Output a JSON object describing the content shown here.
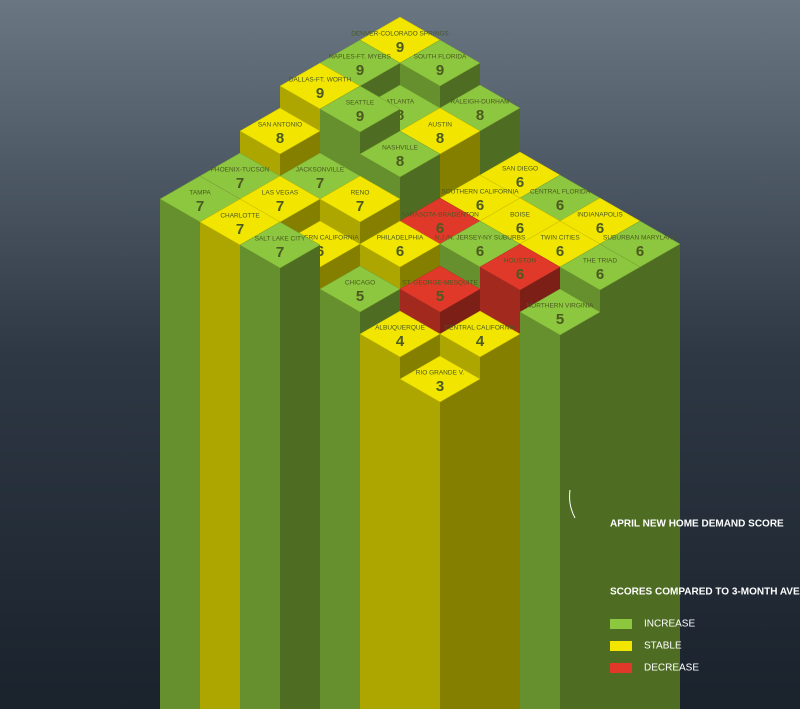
{
  "markets": [
    {
      "name": "DENVER-COLORADO SPRINGS",
      "score": 9,
      "trend": "STABLE"
    },
    {
      "name": "SOUTH FLORIDA",
      "score": 9,
      "trend": "INCREASE"
    },
    {
      "name": "RALEIGH-DURHAM",
      "score": 8,
      "trend": "INCREASE"
    },
    {
      "name": "SAN DIEGO",
      "score": 6,
      "trend": "STABLE"
    },
    {
      "name": "CENTRAL FLORIDA",
      "score": 6,
      "trend": "INCREASE"
    },
    {
      "name": "INDIANAPOLIS",
      "score": 6,
      "trend": "STABLE"
    },
    {
      "name": "SUBURBAN MARYLAND",
      "score": 6,
      "trend": "INCREASE"
    },
    {
      "name": "NAPLES-FT. MYERS",
      "score": 9,
      "trend": "INCREASE"
    },
    {
      "name": "ATLANTA",
      "score": 8,
      "trend": "INCREASE"
    },
    {
      "name": "AUSTIN",
      "score": 8,
      "trend": "STABLE"
    },
    {
      "name": "SOUTHERN CALIFORNIA",
      "score": 6,
      "trend": "STABLE"
    },
    {
      "name": "BOISE",
      "score": 6,
      "trend": "STABLE"
    },
    {
      "name": "TWIN CITIES",
      "score": 6,
      "trend": "STABLE"
    },
    {
      "name": "THE TRIAD",
      "score": 6,
      "trend": "INCREASE"
    },
    {
      "name": "DALLAS-FT. WORTH",
      "score": 9,
      "trend": "STABLE"
    },
    {
      "name": "SEATTLE",
      "score": 9,
      "trend": "INCREASE"
    },
    {
      "name": "NASHVILLE",
      "score": 8,
      "trend": "INCREASE"
    },
    {
      "name": "SARASOTA-BRADENTON",
      "score": 6,
      "trend": "DECREASE"
    },
    {
      "name": "N.J./N. JERSEY-NY SUBURBS",
      "score": 6,
      "trend": "INCREASE"
    },
    {
      "name": "HOUSTON",
      "score": 6,
      "trend": "DECREASE"
    },
    {
      "name": "NORTHERN VIRGINIA",
      "score": 5,
      "trend": "INCREASE"
    },
    {
      "name": "SAN ANTONIO",
      "score": 8,
      "trend": "STABLE"
    },
    {
      "name": "JACKSONVILLE",
      "score": 7,
      "trend": "INCREASE"
    },
    {
      "name": "RENO",
      "score": 7,
      "trend": "STABLE"
    },
    {
      "name": "PHILADELPHIA",
      "score": 6,
      "trend": "STABLE"
    },
    {
      "name": "ST. GEORGE-MESQUITE",
      "score": 5,
      "trend": "DECREASE"
    },
    {
      "name": "CENTRAL CALIFORNIA",
      "score": 4,
      "trend": "STABLE"
    },
    {
      "name": "PHOENIX-TUCSON",
      "score": 7,
      "trend": "INCREASE"
    },
    {
      "name": "LAS VEGAS",
      "score": 7,
      "trend": "STABLE"
    },
    {
      "name": "NORTHERN CALIFORNIA",
      "score": 6,
      "trend": "STABLE"
    },
    {
      "name": "CHICAGO",
      "score": 5,
      "trend": "INCREASE"
    },
    {
      "name": "ALBUQUERQUE",
      "score": 4,
      "trend": "STABLE"
    },
    {
      "name": "RIO GRANDE V.",
      "score": 3,
      "trend": "STABLE"
    },
    {
      "name": "TAMPA",
      "score": 7,
      "trend": "INCREASE"
    },
    {
      "name": "CHARLOTTE",
      "score": 7,
      "trend": "STABLE"
    },
    {
      "name": "SALT LAKE CITY",
      "score": 7,
      "trend": "INCREASE"
    }
  ],
  "annotation": "APRIL NEW HOME DEMAND SCORE",
  "legend": {
    "title": "SCORES COMPARED TO 3-MONTH AVERAGE",
    "items": [
      {
        "label": "INCREASE",
        "color": "#8dc63f"
      },
      {
        "label": "STABLE",
        "color": "#f2e600"
      },
      {
        "label": "DECREASE",
        "color": "#e0392a"
      }
    ]
  }
}
